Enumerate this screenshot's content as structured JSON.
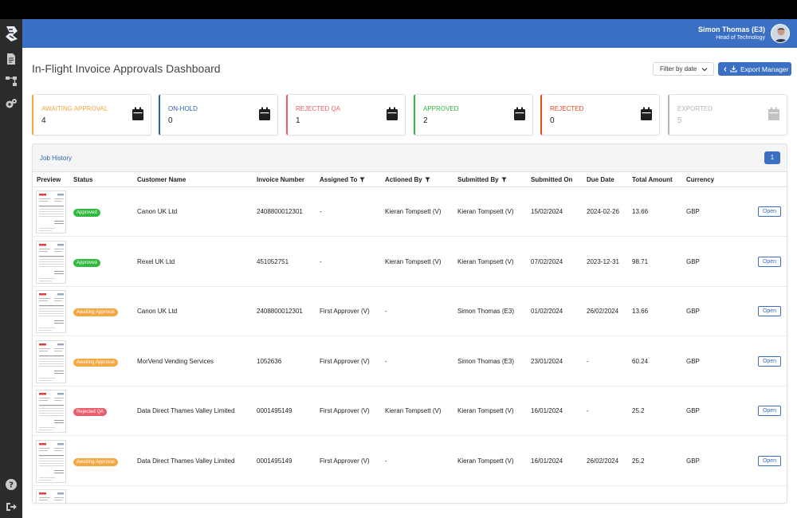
{
  "header": {
    "user_name": "Simon Thomas (E3)",
    "user_role": "Head of Technology"
  },
  "sidebar": {
    "items": [
      {
        "icon": "document-icon"
      },
      {
        "icon": "workflow-icon"
      },
      {
        "icon": "settings-icon"
      },
      {
        "icon": "help-icon"
      },
      {
        "icon": "logout-icon"
      }
    ]
  },
  "page": {
    "title": "In-Flight Invoice Approvals Dashboard",
    "filter_label": "Filter by date",
    "export_label": "Export Manager"
  },
  "cards": [
    {
      "label": "AWAITING APPROVAL",
      "value": "4",
      "color": "#f5a742"
    },
    {
      "label": "ON-HOLD",
      "value": "0",
      "color": "#2f62b3"
    },
    {
      "label": "REJECTED QA",
      "value": "1",
      "color": "#e85c6c"
    },
    {
      "label": "APPROVED",
      "value": "2",
      "color": "#2fba3e"
    },
    {
      "label": "REJECTED",
      "value": "0",
      "color": "#e8491d"
    },
    {
      "label": "EXPORTED",
      "value": "5",
      "color": "#b0b7c3"
    }
  ],
  "table": {
    "title": "Job History",
    "page": "1",
    "columns": [
      "Preview",
      "Status",
      "Customer Name",
      "Invoice Number",
      "Assigned To",
      "Actioned By",
      "Submitted By",
      "Submitted On",
      "Due Date",
      "Total Amount",
      "Currency"
    ],
    "open_label": "Open",
    "status_colors": {
      "Approved": "#2fba3e",
      "Awaiting Approval": "#f5a742",
      "Rejected QA": "#e85c6c"
    },
    "rows": [
      {
        "status": "Approved",
        "customer": "Canon UK Ltd",
        "invoice": "2408800012301",
        "assigned": "-",
        "actioned": "Kieran Tompsett (V)",
        "submitted_by": "Kieran Tompsett (V)",
        "submitted_on": "15/02/2024",
        "due": "2024-02-26",
        "amount": "13.66",
        "currency": "GBP"
      },
      {
        "status": "Approved",
        "customer": "Rexel UK Ltd",
        "invoice": "451052751",
        "assigned": "-",
        "actioned": "Kieran Tompsett (V)",
        "submitted_by": "Kieran Tompsett (V)",
        "submitted_on": "07/02/2024",
        "due": "2023-12-31",
        "amount": "98.71",
        "currency": "GBP"
      },
      {
        "status": "Awaiting Approval",
        "customer": "Canon UK Ltd",
        "invoice": "2408800012301",
        "assigned": "First Approver (V)",
        "actioned": "-",
        "submitted_by": "Simon Thomas (E3)",
        "submitted_on": "01/02/2024",
        "due": "26/02/2024",
        "amount": "13.66",
        "currency": "GBP"
      },
      {
        "status": "Awaiting Approval",
        "customer": "MorVend Vending Services",
        "invoice": "1052636",
        "assigned": "First Approver (V)",
        "actioned": "-",
        "submitted_by": "Simon Thomas (E3)",
        "submitted_on": "23/01/2024",
        "due": "-",
        "amount": "60.24",
        "currency": "GBP"
      },
      {
        "status": "Rejected QA",
        "customer": "Data Direct Thames Valley Limited",
        "invoice": "0001495149",
        "assigned": "First Approver (V)",
        "actioned": "Kieran Tompsett (V)",
        "submitted_by": "Kieran Tompsett (V)",
        "submitted_on": "16/01/2024",
        "due": "-",
        "amount": "25.2",
        "currency": "GBP"
      },
      {
        "status": "Awaiting Approval",
        "customer": "Data Direct Thames Valley Limited",
        "invoice": "0001495149",
        "assigned": "First Approver (V)",
        "actioned": "-",
        "submitted_by": "Kieran Tompsett (V)",
        "submitted_on": "16/01/2024",
        "due": "26/02/2024",
        "amount": "25.2",
        "currency": "GBP"
      }
    ]
  }
}
